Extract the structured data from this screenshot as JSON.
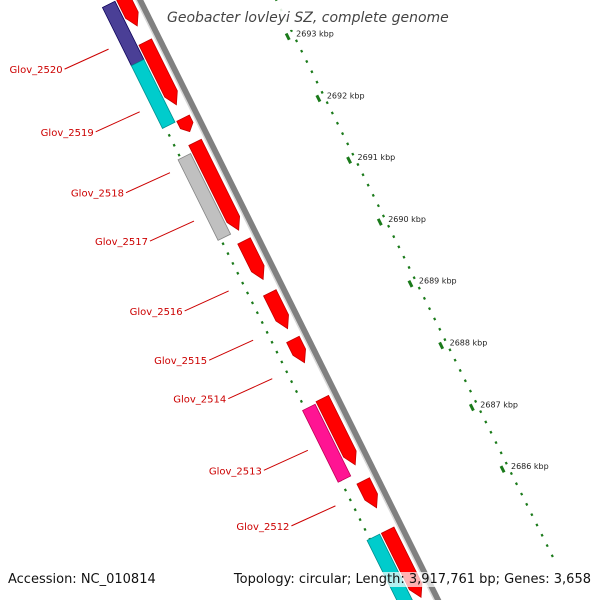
{
  "title": "Geobacter lovleyi SZ, complete genome",
  "accession": "Accession: NC_010814",
  "summary": "Topology: circular; Length: 3,917,761 bp; Genes: 3,658",
  "colors": {
    "backbone": "#808080",
    "forward_gene": "#ff0000",
    "reverse_gene_cyan": "#00cccc",
    "reverse_gene_navy": "#4a3f96",
    "reverse_gene_grey": "#c0c0c0",
    "reverse_gene_pink": "#ff1493",
    "tick": "#1a7a1a",
    "label": "#cc0000"
  },
  "scale_ticks": [
    {
      "label": "2693 kbp"
    },
    {
      "label": "2692 kbp"
    },
    {
      "label": "2691 kbp"
    },
    {
      "label": "2690 kbp"
    },
    {
      "label": "2689 kbp"
    },
    {
      "label": "2688 kbp"
    },
    {
      "label": "2687 kbp"
    },
    {
      "label": "2686 kbp"
    }
  ],
  "gene_labels": [
    {
      "name": "Glov_2520"
    },
    {
      "name": "Glov_2519"
    },
    {
      "name": "Glov_2518"
    },
    {
      "name": "Glov_2517"
    },
    {
      "name": "Glov_2516"
    },
    {
      "name": "Glov_2515"
    },
    {
      "name": "Glov_2514"
    },
    {
      "name": "Glov_2513"
    },
    {
      "name": "Glov_2512"
    }
  ]
}
